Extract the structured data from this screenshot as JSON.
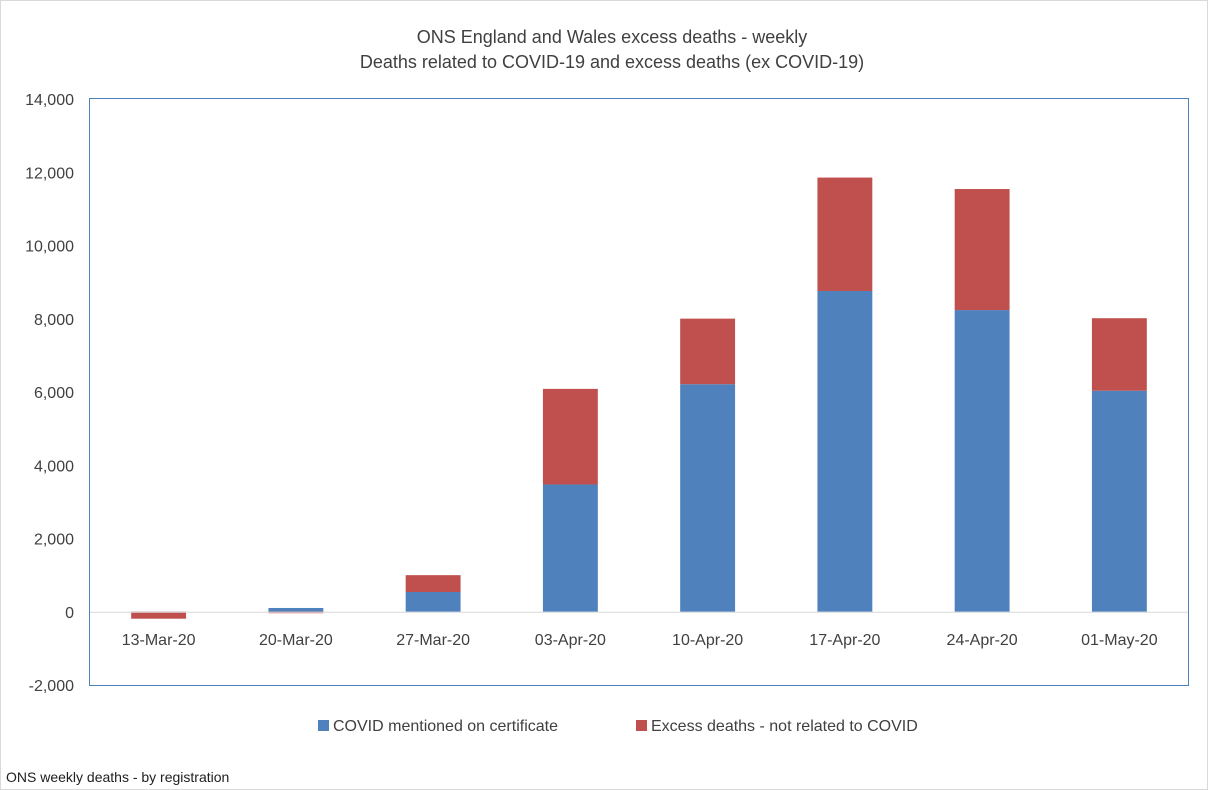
{
  "chart_data": {
    "type": "bar",
    "stacked": true,
    "title": "ONS England and Wales excess deaths - weekly",
    "subtitle": "Deaths related to COVID-19 and excess deaths (ex COVID-19)",
    "xlabel": "",
    "ylabel": "",
    "ylim": [
      -2000,
      14000
    ],
    "yticks": [
      "-2,000",
      "0",
      "2,000",
      "4,000",
      "6,000",
      "8,000",
      "10,000",
      "12,000",
      "14,000"
    ],
    "ytick_values": [
      -2000,
      0,
      2000,
      4000,
      6000,
      8000,
      10000,
      12000,
      14000
    ],
    "grid": false,
    "legend_position": "bottom",
    "categories": [
      "13-Mar-20",
      "20-Mar-20",
      "27-Mar-20",
      "03-Apr-20",
      "10-Apr-20",
      "17-Apr-20",
      "24-Apr-20",
      "01-May-20"
    ],
    "series": [
      {
        "name": "COVID mentioned on certificate",
        "color": "#4f81bd",
        "values": [
          5,
          103,
          539,
          3475,
          6213,
          8758,
          8237,
          6035
        ]
      },
      {
        "name": "Excess deaths - not related to COVID",
        "color": "#c0504d",
        "values": [
          -190,
          -40,
          460,
          2610,
          1790,
          3097,
          3305,
          1980
        ]
      }
    ],
    "source_note": "ONS weekly deaths - by registration"
  }
}
